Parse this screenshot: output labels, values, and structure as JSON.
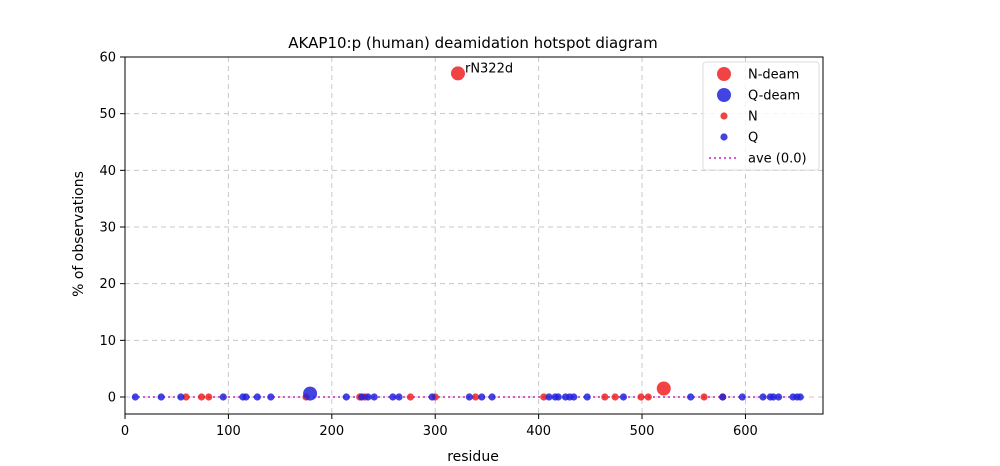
{
  "chart_data": {
    "type": "scatter",
    "title": "AKAP10:p (human) deamidation hotspot diagram",
    "xlabel": "residue",
    "ylabel": "% of observations",
    "xlim": [
      0,
      675
    ],
    "ylim": [
      -3,
      60
    ],
    "xticks": [
      0,
      100,
      200,
      300,
      400,
      500,
      600
    ],
    "yticks": [
      0,
      10,
      20,
      30,
      40,
      50,
      60
    ],
    "grid": true,
    "legend_position": "top-right",
    "colors": {
      "N": "#ee2222",
      "Q": "#2222dd",
      "ave": "#cc44cc"
    },
    "series": [
      {
        "name": "N-deam",
        "marker": "large",
        "color": "#ee2222",
        "points": [
          {
            "x": 322,
            "y": 57.1
          },
          {
            "x": 521,
            "y": 1.5
          }
        ]
      },
      {
        "name": "Q-deam",
        "marker": "large",
        "color": "#2222dd",
        "points": [
          {
            "x": 179,
            "y": 0.6
          }
        ]
      },
      {
        "name": "N",
        "marker": "small",
        "color": "#ee2222",
        "points": [
          {
            "x": 59,
            "y": 0
          },
          {
            "x": 74,
            "y": 0
          },
          {
            "x": 81,
            "y": 0
          },
          {
            "x": 175,
            "y": 0
          },
          {
            "x": 227,
            "y": 0
          },
          {
            "x": 232,
            "y": 0
          },
          {
            "x": 276,
            "y": 0
          },
          {
            "x": 300,
            "y": 0
          },
          {
            "x": 339,
            "y": 0
          },
          {
            "x": 405,
            "y": 0
          },
          {
            "x": 464,
            "y": 0
          },
          {
            "x": 474,
            "y": 0
          },
          {
            "x": 499,
            "y": 0
          },
          {
            "x": 506,
            "y": 0
          },
          {
            "x": 560,
            "y": 0
          },
          {
            "x": 578,
            "y": 0
          }
        ]
      },
      {
        "name": "Q",
        "marker": "small",
        "color": "#2222dd",
        "points": [
          {
            "x": 10,
            "y": 0
          },
          {
            "x": 35,
            "y": 0
          },
          {
            "x": 54,
            "y": 0
          },
          {
            "x": 95,
            "y": 0
          },
          {
            "x": 114,
            "y": 0
          },
          {
            "x": 117,
            "y": 0
          },
          {
            "x": 128,
            "y": 0
          },
          {
            "x": 141,
            "y": 0
          },
          {
            "x": 214,
            "y": 0
          },
          {
            "x": 229,
            "y": 0
          },
          {
            "x": 235,
            "y": 0
          },
          {
            "x": 241,
            "y": 0
          },
          {
            "x": 259,
            "y": 0
          },
          {
            "x": 265,
            "y": 0
          },
          {
            "x": 297,
            "y": 0
          },
          {
            "x": 333,
            "y": 0
          },
          {
            "x": 345,
            "y": 0
          },
          {
            "x": 355,
            "y": 0
          },
          {
            "x": 410,
            "y": 0
          },
          {
            "x": 416,
            "y": 0
          },
          {
            "x": 419,
            "y": 0
          },
          {
            "x": 426,
            "y": 0
          },
          {
            "x": 430,
            "y": 0
          },
          {
            "x": 434,
            "y": 0
          },
          {
            "x": 447,
            "y": 0
          },
          {
            "x": 482,
            "y": 0
          },
          {
            "x": 547,
            "y": 0
          },
          {
            "x": 578,
            "y": 0
          },
          {
            "x": 597,
            "y": 0
          },
          {
            "x": 617,
            "y": 0
          },
          {
            "x": 624,
            "y": 0
          },
          {
            "x": 627,
            "y": 0
          },
          {
            "x": 632,
            "y": 0
          },
          {
            "x": 646,
            "y": 0
          },
          {
            "x": 650,
            "y": 0
          },
          {
            "x": 653,
            "y": 0
          }
        ]
      }
    ],
    "average": {
      "name": "ave (0.0)",
      "value": 0.0,
      "style": "dotted",
      "color": "#cc44cc"
    },
    "annotations": [
      {
        "text": "rN322d",
        "x": 322,
        "y": 57.1
      }
    ]
  }
}
